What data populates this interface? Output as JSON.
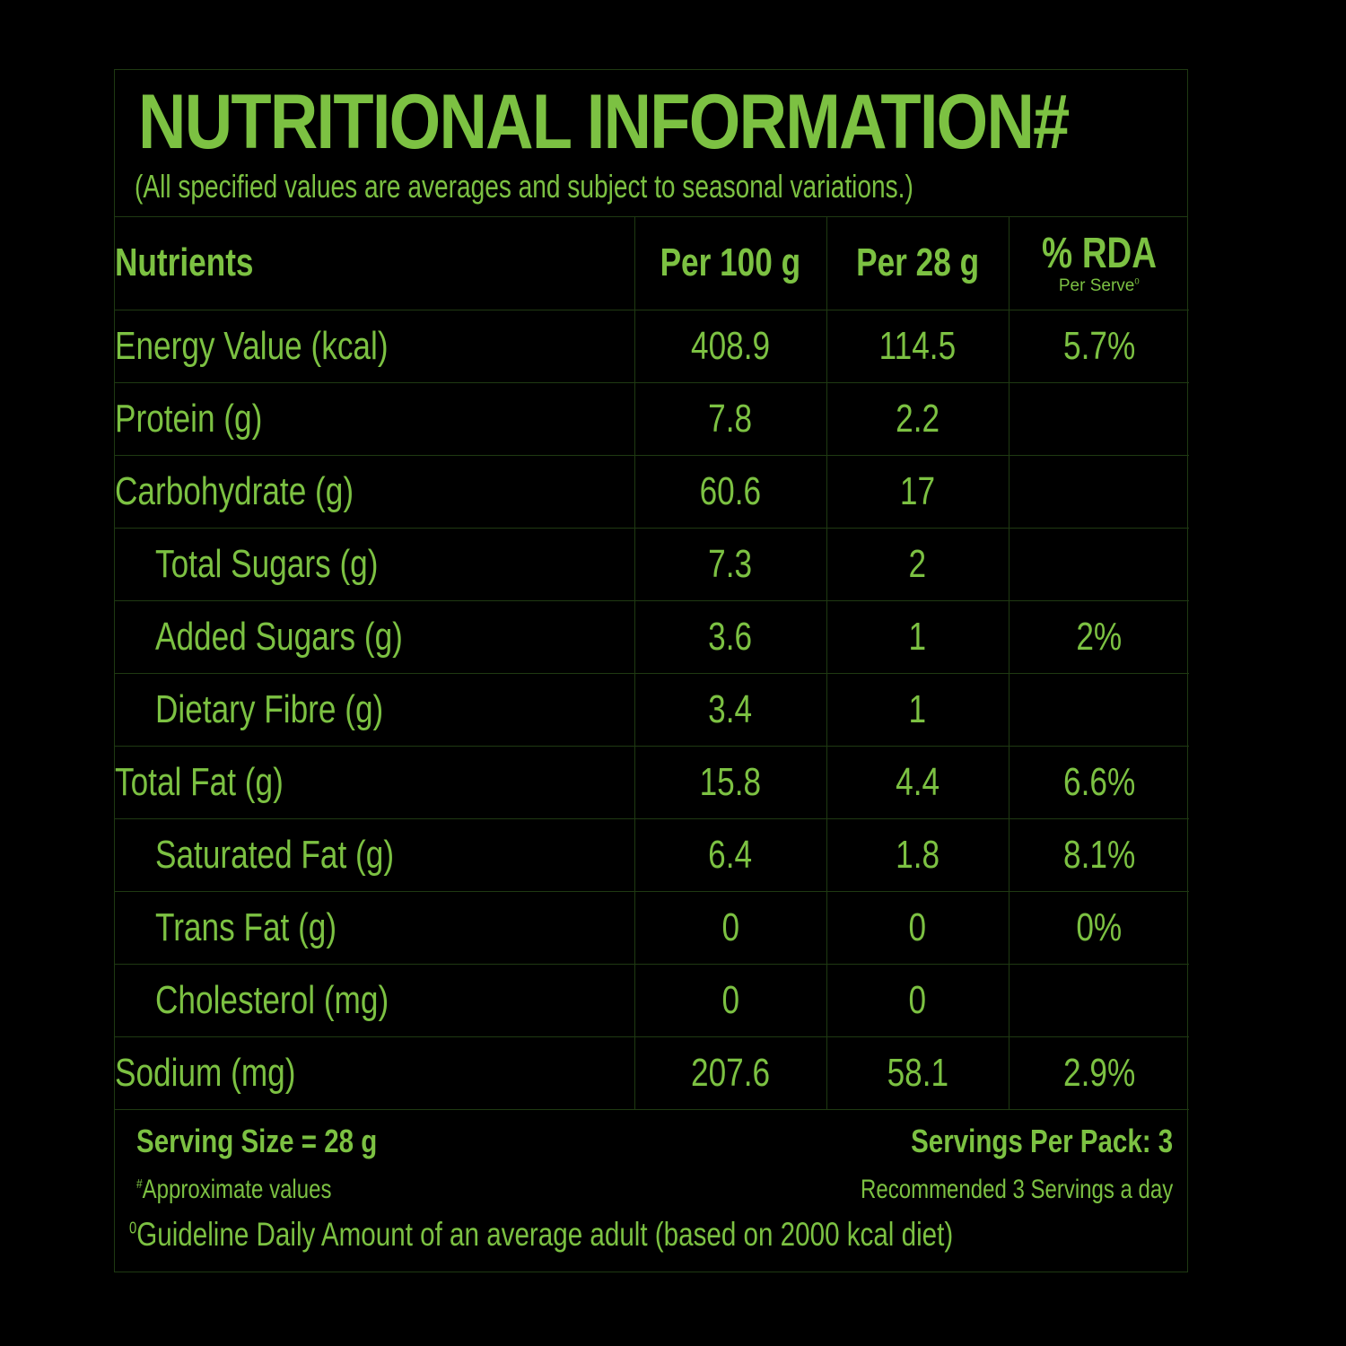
{
  "header": {
    "title": "NUTRITIONAL INFORMATION#",
    "subtitle": "(All specified values are averages and subject to seasonal variations.)"
  },
  "table": {
    "columns": {
      "nutrients": "Nutrients",
      "per_100g": "Per 100 g",
      "per_28g": "Per 28 g",
      "rda": "% RDA",
      "rda_sub": "Per Serve",
      "rda_sub_mark": "0"
    },
    "rows": [
      {
        "name": "Energy Value (kcal)",
        "per_100g": "408.9",
        "per_28g": "114.5",
        "rda": "5.7%"
      },
      {
        "name": "Protein (g)",
        "per_100g": "7.8",
        "per_28g": "2.2",
        "rda": ""
      },
      {
        "name": "Carbohydrate (g)",
        "per_100g": "60.6",
        "per_28g": "17",
        "rda": ""
      },
      {
        "name": "Total Sugars (g)",
        "per_100g": "7.3",
        "per_28g": "2",
        "rda": ""
      },
      {
        "name": "Added Sugars (g)",
        "per_100g": "3.6",
        "per_28g": "1",
        "rda": "2%"
      },
      {
        "name": "Dietary Fibre (g)",
        "per_100g": "3.4",
        "per_28g": "1",
        "rda": ""
      },
      {
        "name": "Total Fat (g)",
        "per_100g": "15.8",
        "per_28g": "4.4",
        "rda": "6.6%"
      },
      {
        "name": "Saturated Fat (g)",
        "per_100g": "6.4",
        "per_28g": "1.8",
        "rda": "8.1%"
      },
      {
        "name": "Trans Fat (g)",
        "per_100g": "0",
        "per_28g": "0",
        "rda": "0%"
      },
      {
        "name": "Cholesterol (mg)",
        "per_100g": "0",
        "per_28g": "0",
        "rda": ""
      },
      {
        "name": "Sodium (mg)",
        "per_100g": "207.6",
        "per_28g": "58.1",
        "rda": "2.9%"
      }
    ]
  },
  "footer": {
    "serving_size": "Serving Size = 28 g",
    "servings_per_pack": "Servings Per Pack: 3",
    "approx_mark": "#",
    "approx": "Approximate values",
    "recommended": "Recommended 3 Servings a day",
    "guideline_mark": "0",
    "guideline": "Guideline Daily Amount of an average adult (based on 2000 kcal diet)"
  },
  "colors": {
    "text": "#7cc142",
    "background": "#000000",
    "rule": "#1f3a12"
  }
}
